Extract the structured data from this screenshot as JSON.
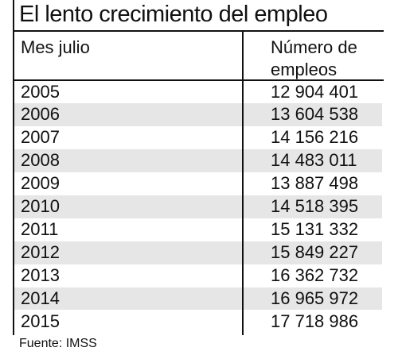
{
  "header": {
    "title": "El lento crecimiento del empleo"
  },
  "table": {
    "columns": [
      "Mes julio",
      "Número de empleos"
    ],
    "rows": [
      [
        "2005",
        "12 904 401"
      ],
      [
        "2006",
        "13 604 538"
      ],
      [
        "2007",
        "14 156 216"
      ],
      [
        "2008",
        "14 483 011"
      ],
      [
        "2009",
        "13 887 498"
      ],
      [
        "2010",
        "14 518 395"
      ],
      [
        "2011",
        "15 131 332"
      ],
      [
        "2012",
        "15 849 227"
      ],
      [
        "2013",
        "16 362 732"
      ],
      [
        "2014",
        "16 965 972"
      ],
      [
        "2015",
        "17 718 986"
      ]
    ]
  },
  "footer": {
    "source": "Fuente: IMSS"
  }
}
